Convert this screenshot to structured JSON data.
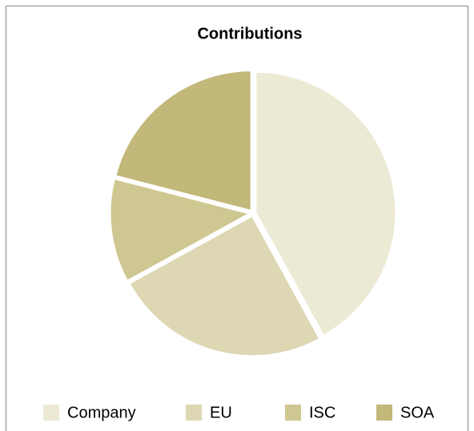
{
  "chart_data": {
    "type": "pie",
    "title": "Contributions",
    "categories": [
      "Company",
      "EU",
      "ISC",
      "SOA"
    ],
    "values": [
      42,
      25,
      12,
      21
    ],
    "colors": [
      "#ece9d5",
      "#ddd7b3",
      "#cfc791",
      "#c2b87a"
    ],
    "legend": "bottom"
  }
}
